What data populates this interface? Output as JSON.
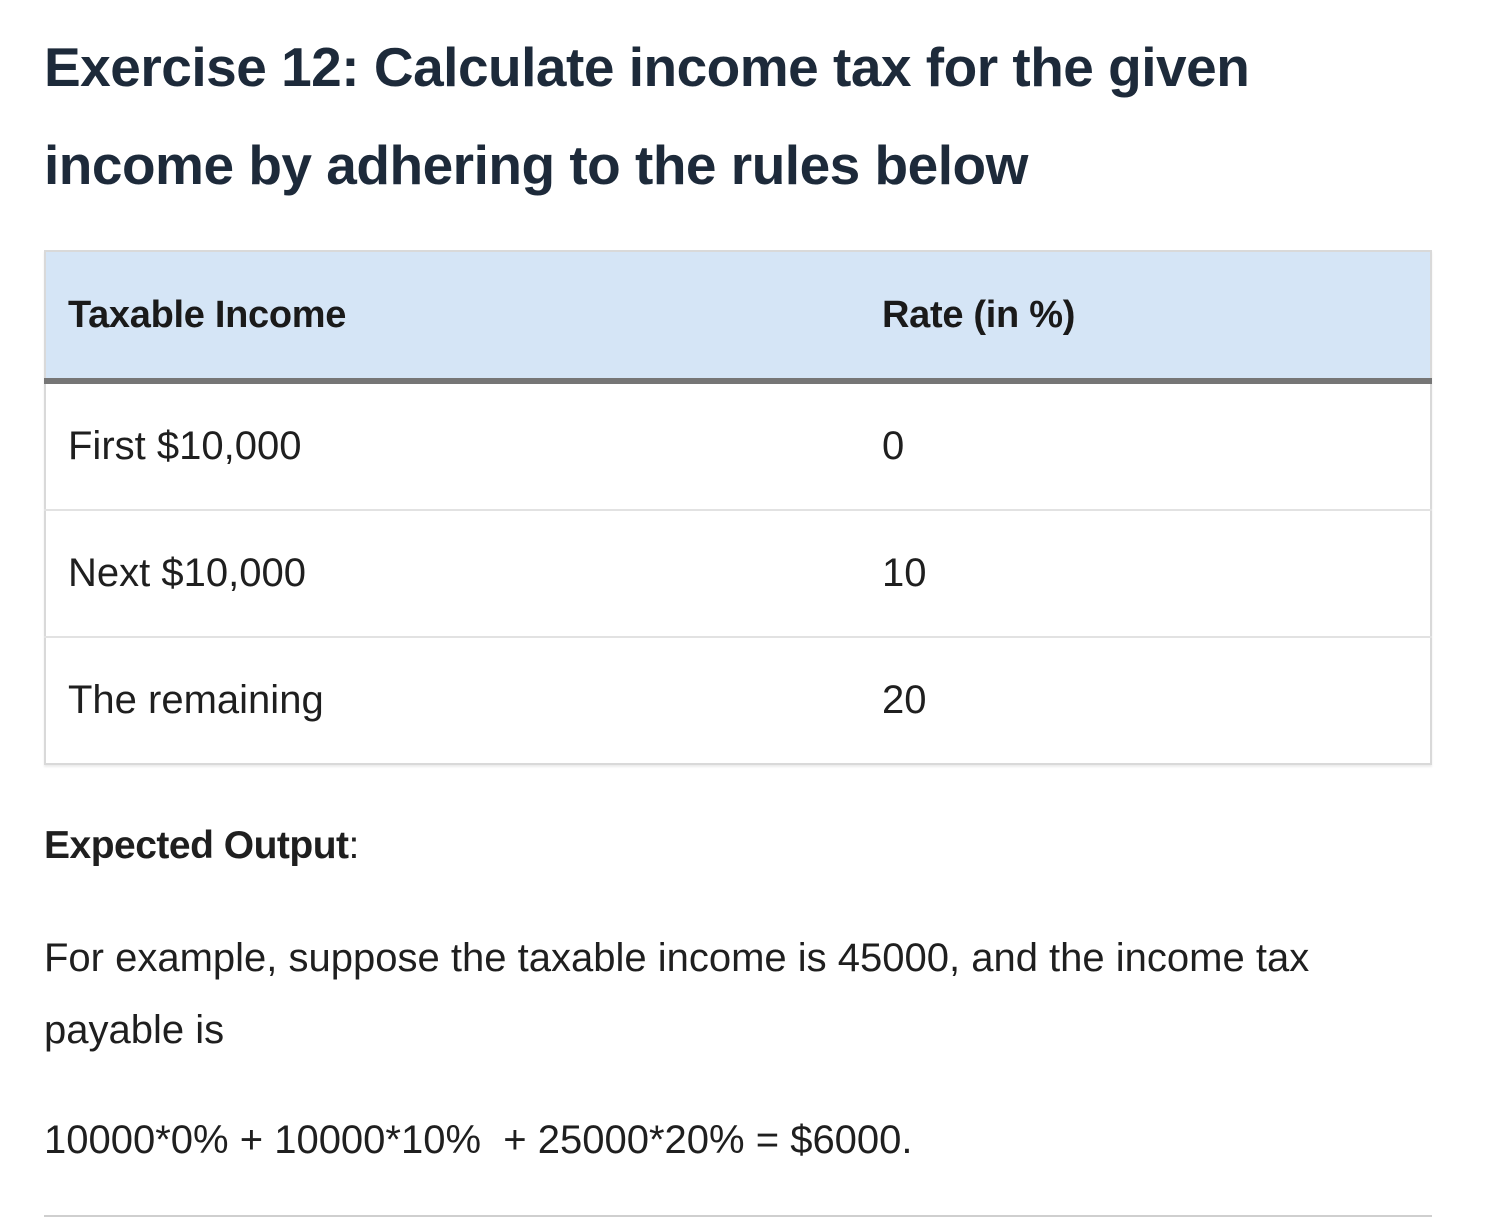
{
  "heading": "Exercise 12: Calculate income tax for the given income by adhering to the rules below",
  "table": {
    "headers": [
      "Taxable Income",
      "Rate (in %)"
    ],
    "rows": [
      [
        "First $10,000",
        "0"
      ],
      [
        "Next $10,000",
        "10"
      ],
      [
        "The remaining",
        "20"
      ]
    ]
  },
  "expected_output": {
    "label": "Expected Output",
    "suffix": ":"
  },
  "example_text": "For example, suppose the taxable income is 45000, and the income tax payable is",
  "formula": "10000*0% + 10000*10%  + 25000*20% = $6000."
}
